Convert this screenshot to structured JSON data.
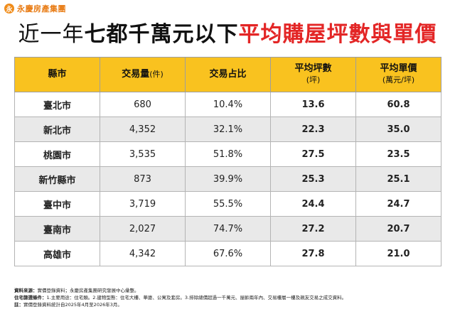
{
  "brand": {
    "logo_char": "永",
    "name": "永慶房產集團"
  },
  "title": {
    "part1": "近一年",
    "part2": "七都千萬元以下",
    "part3": "平均購屋坪數與單價"
  },
  "table": {
    "headers": [
      {
        "label": "縣市",
        "sub": ""
      },
      {
        "label": "交易量",
        "sub": "(件)"
      },
      {
        "label": "交易占比",
        "sub": ""
      },
      {
        "label": "平均坪數",
        "sub": "(坪)"
      },
      {
        "label": "平均單價",
        "sub": "(萬元/坪)"
      }
    ],
    "rows": [
      {
        "city": "臺北市",
        "volume": "680",
        "share": "10.4%",
        "area": "13.6",
        "price": "60.8"
      },
      {
        "city": "新北市",
        "volume": "4,352",
        "share": "32.1%",
        "area": "22.3",
        "price": "35.0"
      },
      {
        "city": "桃園市",
        "volume": "3,535",
        "share": "51.8%",
        "area": "27.5",
        "price": "23.5"
      },
      {
        "city": "新竹縣市",
        "volume": "873",
        "share": "39.9%",
        "area": "25.3",
        "price": "25.1"
      },
      {
        "city": "臺中市",
        "volume": "3,719",
        "share": "55.5%",
        "area": "24.4",
        "price": "24.7"
      },
      {
        "city": "臺南市",
        "volume": "2,027",
        "share": "74.7%",
        "area": "27.2",
        "price": "20.7"
      },
      {
        "city": "高雄市",
        "volume": "4,342",
        "share": "67.6%",
        "area": "27.8",
        "price": "21.0"
      }
    ]
  },
  "notes": [
    {
      "key": "資料來源：",
      "text": "實價登錄資料；永慶房產集團研究發展中心彙整。"
    },
    {
      "key": "住宅篩選條件：",
      "text": "1.主要用途：住宅類。2.建物型態：住宅大樓、華廈、公寓及套房。3.排除總價超過一千萬元、屋齡兩年內、交易樓層一樓及親友交易之成交資料。"
    },
    {
      "key": "註：",
      "text": "實價登錄資料統計自2025年4月至2026年3月。"
    }
  ],
  "colors": {
    "header_bg": "#f9c21f",
    "accent_red": "#e32626",
    "alt_row": "#e9e9e9",
    "brand_orange": "#f08c1a"
  }
}
